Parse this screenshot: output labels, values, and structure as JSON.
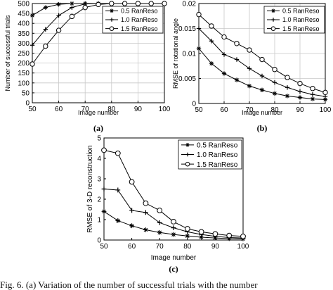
{
  "caption": "Fig. 6.   (a) Variation of the number of successful trials with the number",
  "chart_data": [
    {
      "id": "a",
      "type": "line",
      "panel_label": "(a)",
      "xlabel": "Image number",
      "ylabel": "Number of successful trials",
      "xlim": [
        50,
        100
      ],
      "ylim": [
        0,
        500
      ],
      "xticks": [
        50,
        60,
        70,
        80,
        90,
        100
      ],
      "yticks": [
        0,
        50,
        100,
        150,
        200,
        250,
        300,
        350,
        400,
        450,
        500
      ],
      "grid": true,
      "legend_position": "top-right",
      "series": [
        {
          "name": "0.5 RanReso",
          "marker": "star",
          "x": [
            50,
            55,
            60,
            65,
            70,
            75,
            80,
            85,
            90,
            95,
            100
          ],
          "y": [
            440,
            480,
            496,
            500,
            500,
            500,
            500,
            500,
            500,
            500,
            500
          ]
        },
        {
          "name": "1.0 RanReso",
          "marker": "plus",
          "x": [
            50,
            55,
            60,
            65,
            70,
            75,
            80,
            85,
            90,
            95,
            100
          ],
          "y": [
            290,
            370,
            440,
            480,
            498,
            500,
            500,
            500,
            500,
            500,
            500
          ]
        },
        {
          "name": "1.5 RanReso",
          "marker": "circle",
          "x": [
            50,
            55,
            60,
            65,
            70,
            75,
            80,
            85,
            90,
            95,
            100
          ],
          "y": [
            195,
            285,
            365,
            435,
            480,
            495,
            500,
            500,
            500,
            500,
            500
          ]
        }
      ]
    },
    {
      "id": "b",
      "type": "line",
      "panel_label": "(b)",
      "xlabel": "Image number",
      "ylabel": "RMSE of rotational angle",
      "xlim": [
        50,
        100
      ],
      "ylim": [
        0,
        0.02
      ],
      "xticks": [
        50,
        60,
        70,
        80,
        90,
        100
      ],
      "yticks": [
        0,
        0.005,
        0.01,
        0.015,
        0.02
      ],
      "grid": true,
      "legend_position": "top-right",
      "series": [
        {
          "name": "0.5 RanReso",
          "marker": "star",
          "x": [
            50,
            55,
            60,
            65,
            70,
            75,
            80,
            85,
            90,
            95,
            100
          ],
          "y": [
            0.011,
            0.008,
            0.006,
            0.0047,
            0.0035,
            0.0027,
            0.002,
            0.0015,
            0.0012,
            0.0009,
            0.0008
          ]
        },
        {
          "name": "1.0 RanReso",
          "marker": "plus",
          "x": [
            50,
            55,
            60,
            65,
            70,
            75,
            80,
            85,
            90,
            95,
            100
          ],
          "y": [
            0.015,
            0.0125,
            0.0098,
            0.0088,
            0.007,
            0.0055,
            0.0042,
            0.0032,
            0.0024,
            0.0018,
            0.0014
          ]
        },
        {
          "name": "1.5 RanReso",
          "marker": "circle",
          "x": [
            50,
            55,
            60,
            65,
            70,
            75,
            80,
            85,
            90,
            95,
            100
          ],
          "y": [
            0.0178,
            0.0155,
            0.0133,
            0.012,
            0.0107,
            0.0088,
            0.0068,
            0.0052,
            0.004,
            0.003,
            0.0022
          ]
        }
      ]
    },
    {
      "id": "c",
      "type": "line",
      "panel_label": "(c)",
      "xlabel": "Image number",
      "ylabel": "RMSE of 3-D reconstruction",
      "xlim": [
        50,
        100
      ],
      "ylim": [
        0,
        5
      ],
      "xticks": [
        50,
        60,
        70,
        80,
        90,
        100
      ],
      "yticks": [
        0,
        1,
        2,
        3,
        4,
        5
      ],
      "grid": false,
      "legend_position": "top-right",
      "series": [
        {
          "name": "0.5 RanReso",
          "marker": "star",
          "x": [
            50,
            55,
            60,
            65,
            70,
            75,
            80,
            85,
            90,
            95,
            100
          ],
          "y": [
            1.4,
            0.95,
            0.7,
            0.5,
            0.37,
            0.27,
            0.2,
            0.14,
            0.1,
            0.07,
            0.06
          ]
        },
        {
          "name": "1.0 RanReso",
          "marker": "plus",
          "x": [
            50,
            55,
            60,
            65,
            70,
            75,
            80,
            85,
            90,
            95,
            100
          ],
          "y": [
            2.5,
            2.45,
            1.45,
            1.35,
            0.85,
            0.6,
            0.4,
            0.27,
            0.18,
            0.12,
            0.1
          ]
        },
        {
          "name": "1.5 RanReso",
          "marker": "circle",
          "x": [
            50,
            55,
            60,
            65,
            70,
            75,
            80,
            85,
            90,
            95,
            100
          ],
          "y": [
            4.4,
            4.25,
            2.85,
            1.8,
            1.45,
            0.9,
            0.55,
            0.4,
            0.3,
            0.22,
            0.18
          ]
        }
      ]
    }
  ]
}
